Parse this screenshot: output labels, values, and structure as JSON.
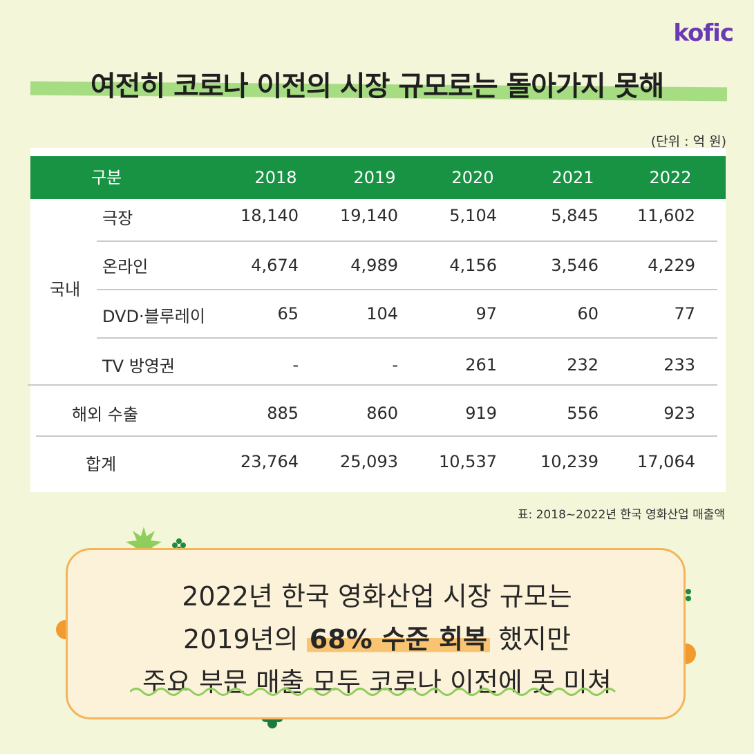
{
  "logo": "kofic",
  "title": "여전히 코로나 이전의 시장 규모로는 돌아가지 못해",
  "unit": "(단위 : 억 원)",
  "table": {
    "header": {
      "category": "구분",
      "years": [
        "2018",
        "2019",
        "2020",
        "2021",
        "2022"
      ]
    },
    "group_label": "국내",
    "rows": [
      {
        "label": "극장",
        "values": [
          "18,140",
          "19,140",
          "5,104",
          "5,845",
          "11,602"
        ]
      },
      {
        "label": "온라인",
        "values": [
          "4,674",
          "4,989",
          "4,156",
          "3,546",
          "4,229"
        ]
      },
      {
        "label": "DVD·블루레이",
        "values": [
          "65",
          "104",
          "97",
          "60",
          "77"
        ]
      },
      {
        "label": "TV 방영권",
        "values": [
          "-",
          "-",
          "261",
          "232",
          "233"
        ]
      },
      {
        "label": "해외 수출",
        "values": [
          "885",
          "860",
          "919",
          "556",
          "923"
        ]
      },
      {
        "label": "합계",
        "values": [
          "23,764",
          "25,093",
          "10,537",
          "10,239",
          "17,064"
        ]
      }
    ]
  },
  "caption": "표: 2018~2022년 한국 영화산업 매출액",
  "summary": {
    "line1": "2022년 한국 영화산업 시장 규모는",
    "line2_pre": "2019년의 ",
    "line2_strong": "68% 수준 회복",
    "line2_post": " 했지만",
    "line3": "주요 부문 매출 모두 코로나 이전에 못 미쳐"
  },
  "colors": {
    "header_green": "#189243",
    "title_highlight": "#a6dc82",
    "box_border": "#f3b45a",
    "logo": "#6a3ab5"
  }
}
